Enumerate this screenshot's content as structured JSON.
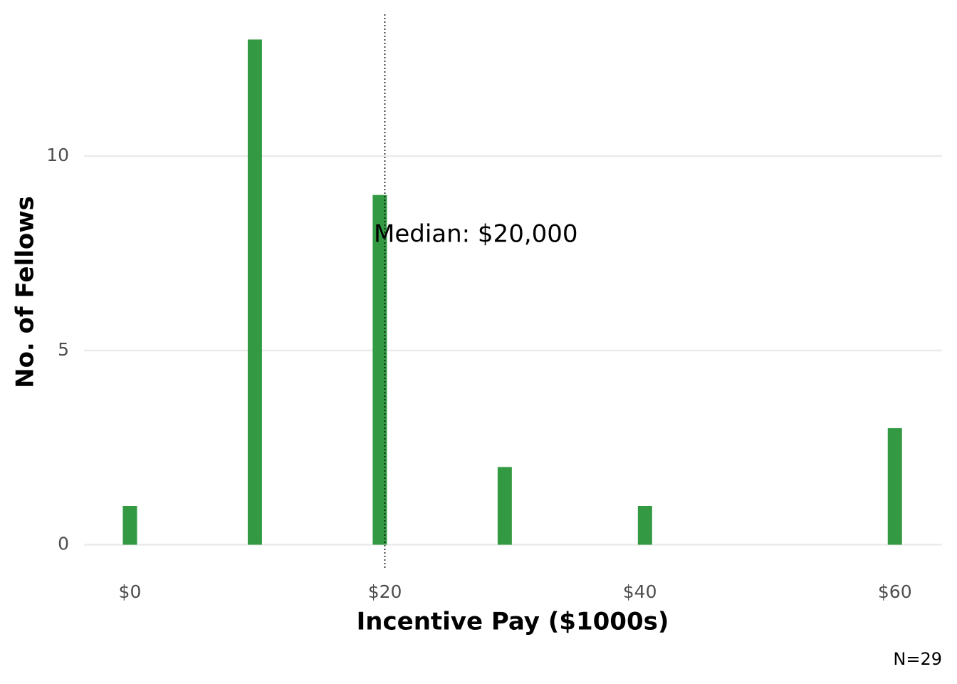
{
  "chart_data": {
    "type": "bar",
    "x": [
      0,
      9.8,
      19.6,
      29.4,
      40.4,
      60
    ],
    "values": [
      1,
      13,
      9,
      2,
      1,
      3
    ],
    "color": "#339a43",
    "xlim": [
      -3.6,
      63.7
    ],
    "xticks": [
      {
        "value": 0,
        "label": "$0"
      },
      {
        "value": 20,
        "label": "$20"
      },
      {
        "value": 40,
        "label": "$40"
      },
      {
        "value": 60,
        "label": "$60"
      }
    ],
    "ylim": [
      -0.65,
      13.65
    ],
    "yticks": [
      0,
      5,
      10
    ],
    "grid": true,
    "xlabel": "Incentive Pay ($1000s)",
    "ylabel": "No. of Fellows",
    "median": 20,
    "annotation": "Median: $20,000",
    "caption": "N=29"
  }
}
